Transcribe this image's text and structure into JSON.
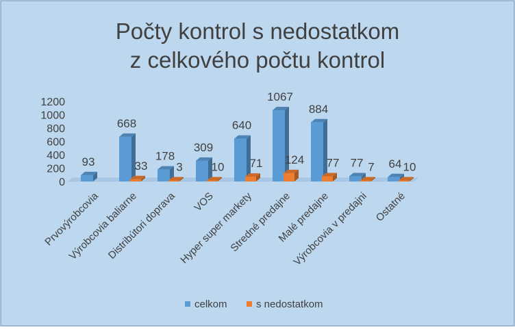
{
  "chart_data": {
    "type": "bar",
    "title_lines": [
      "Počty kontrol s nedostatkom",
      "z celkového počtu kontrol"
    ],
    "categories": [
      "Prvovýrobcovia",
      "Výrobcovia baliarne",
      "Distribútori doprava",
      "VOS",
      "Hyper super markety",
      "Stredné predajne",
      "Malé predajne",
      "Výrobcovia v predajni",
      "Ostatné"
    ],
    "series": [
      {
        "name": "celkom",
        "values": [
          93,
          668,
          178,
          309,
          640,
          1067,
          884,
          77,
          64
        ],
        "color": "#5B9BD5"
      },
      {
        "name": "s nedostatkom",
        "values": [
          null,
          33,
          3,
          10,
          71,
          124,
          77,
          7,
          10
        ],
        "color": "#ED7D31"
      }
    ],
    "yticks": [
      "0",
      "200",
      "400",
      "600",
      "800",
      "1000",
      "1200"
    ],
    "ylim": [
      0,
      1200
    ],
    "grid": false,
    "legend_position": "bottom",
    "background_color": "#BDD7EE",
    "border_color": "#8FA9C6"
  }
}
